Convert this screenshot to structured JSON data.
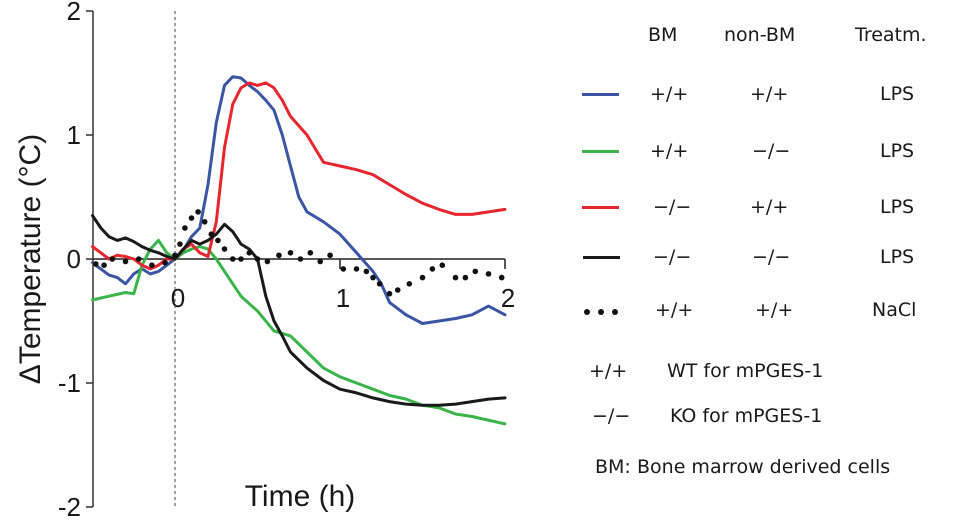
{
  "chart_data": {
    "type": "line",
    "title": "",
    "xlabel": "Time (h)",
    "ylabel": "ΔTemperature (°C)",
    "xlim": [
      -0.5,
      2.0
    ],
    "ylim": [
      -2,
      2
    ],
    "xticks": [
      0,
      1,
      2
    ],
    "xtick_labels": [
      "0",
      "1",
      "2"
    ],
    "yticks": [
      2,
      1,
      0,
      -1,
      -2
    ],
    "ytick_labels": [
      "2",
      "1",
      "0",
      "-1",
      "-2"
    ],
    "reference_line": {
      "x": 0,
      "style": "dashed"
    },
    "grid": false,
    "legend_position": "right",
    "series": [
      {
        "name": "BM +/+, non-BM +/+, LPS",
        "color": "#3a55a4",
        "style": "solid",
        "x": [
          -0.5,
          -0.45,
          -0.4,
          -0.35,
          -0.3,
          -0.25,
          -0.2,
          -0.15,
          -0.1,
          -0.05,
          0,
          0.05,
          0.1,
          0.15,
          0.2,
          0.25,
          0.3,
          0.35,
          0.4,
          0.45,
          0.5,
          0.55,
          0.6,
          0.65,
          0.7,
          0.75,
          0.8,
          0.9,
          1.0,
          1.1,
          1.2,
          1.25,
          1.3,
          1.4,
          1.5,
          1.6,
          1.7,
          1.8,
          1.9,
          2.0
        ],
        "y": [
          -0.03,
          -0.08,
          -0.13,
          -0.15,
          -0.2,
          -0.12,
          -0.08,
          -0.12,
          -0.1,
          -0.05,
          0.0,
          0.07,
          0.18,
          0.25,
          0.6,
          1.1,
          1.4,
          1.47,
          1.46,
          1.4,
          1.35,
          1.28,
          1.2,
          1.0,
          0.75,
          0.5,
          0.38,
          0.3,
          0.2,
          0.05,
          -0.1,
          -0.2,
          -0.35,
          -0.45,
          -0.52,
          -0.5,
          -0.48,
          -0.45,
          -0.38,
          -0.45
        ]
      },
      {
        "name": "BM +/+, non-BM −/−, LPS",
        "color": "#3ab54a",
        "style": "solid",
        "x": [
          -0.5,
          -0.4,
          -0.3,
          -0.25,
          -0.2,
          -0.15,
          -0.1,
          -0.05,
          0,
          0.05,
          0.1,
          0.15,
          0.2,
          0.25,
          0.3,
          0.4,
          0.5,
          0.6,
          0.7,
          0.8,
          0.9,
          1.0,
          1.1,
          1.2,
          1.3,
          1.4,
          1.5,
          1.6,
          1.7,
          1.8,
          1.9,
          2.0
        ],
        "y": [
          -0.33,
          -0.3,
          -0.27,
          -0.28,
          -0.05,
          0.08,
          0.15,
          0.05,
          0.0,
          0.05,
          0.08,
          0.1,
          0.08,
          0.0,
          -0.1,
          -0.3,
          -0.42,
          -0.58,
          -0.62,
          -0.75,
          -0.88,
          -0.95,
          -1.0,
          -1.05,
          -1.1,
          -1.13,
          -1.18,
          -1.2,
          -1.25,
          -1.27,
          -1.3,
          -1.33
        ]
      },
      {
        "name": "BM −/−, non-BM +/+, LPS",
        "color": "#e8262d",
        "style": "solid",
        "x": [
          -0.5,
          -0.45,
          -0.4,
          -0.35,
          -0.3,
          -0.25,
          -0.2,
          -0.15,
          -0.1,
          -0.05,
          0,
          0.05,
          0.1,
          0.15,
          0.2,
          0.25,
          0.3,
          0.35,
          0.4,
          0.45,
          0.5,
          0.55,
          0.6,
          0.65,
          0.7,
          0.8,
          0.9,
          1.0,
          1.1,
          1.2,
          1.3,
          1.4,
          1.5,
          1.6,
          1.7,
          1.8,
          1.9,
          2.0
        ],
        "y": [
          0.1,
          0.05,
          0.0,
          0.03,
          0.02,
          0.0,
          -0.05,
          -0.08,
          -0.05,
          0.0,
          0.0,
          0.08,
          0.12,
          0.05,
          0.02,
          0.3,
          0.9,
          1.25,
          1.38,
          1.42,
          1.4,
          1.42,
          1.38,
          1.28,
          1.15,
          1.0,
          0.78,
          0.75,
          0.72,
          0.68,
          0.6,
          0.52,
          0.45,
          0.4,
          0.36,
          0.36,
          0.38,
          0.4
        ]
      },
      {
        "name": "BM −/−, non-BM −/−, LPS",
        "color": "#1a1a1a",
        "style": "solid",
        "x": [
          -0.5,
          -0.45,
          -0.4,
          -0.35,
          -0.3,
          -0.25,
          -0.2,
          -0.15,
          -0.1,
          -0.05,
          0,
          0.05,
          0.1,
          0.15,
          0.2,
          0.25,
          0.3,
          0.35,
          0.4,
          0.45,
          0.5,
          0.55,
          0.6,
          0.65,
          0.7,
          0.8,
          0.9,
          1.0,
          1.1,
          1.2,
          1.3,
          1.4,
          1.5,
          1.6,
          1.7,
          1.8,
          1.9,
          2.0
        ],
        "y": [
          0.35,
          0.25,
          0.18,
          0.15,
          0.17,
          0.14,
          0.1,
          0.07,
          0.05,
          0.02,
          0.0,
          0.08,
          0.15,
          0.12,
          0.15,
          0.2,
          0.28,
          0.22,
          0.12,
          0.08,
          0.0,
          -0.3,
          -0.5,
          -0.62,
          -0.75,
          -0.88,
          -0.98,
          -1.05,
          -1.08,
          -1.12,
          -1.15,
          -1.17,
          -1.18,
          -1.18,
          -1.17,
          -1.15,
          -1.13,
          -1.12
        ]
      },
      {
        "name": "BM +/+, non-BM +/+, NaCl",
        "color": "#111111",
        "style": "dotted",
        "x": [
          -0.48,
          -0.43,
          -0.38,
          -0.3,
          -0.22,
          -0.14,
          -0.06,
          0.0,
          0.03,
          0.06,
          0.1,
          0.14,
          0.18,
          0.22,
          0.26,
          0.3,
          0.35,
          0.4,
          0.45,
          0.5,
          0.56,
          0.63,
          0.7,
          0.76,
          0.82,
          0.88,
          0.94,
          1.02,
          1.1,
          1.16,
          1.2,
          1.24,
          1.3,
          1.35,
          1.42,
          1.5,
          1.56,
          1.62,
          1.7,
          1.76,
          1.82,
          1.9,
          1.98
        ],
        "y": [
          -0.04,
          -0.05,
          0.0,
          -0.02,
          0.0,
          -0.05,
          -0.03,
          0.03,
          0.12,
          0.25,
          0.33,
          0.38,
          0.3,
          0.2,
          0.15,
          0.08,
          0.0,
          0.0,
          0.05,
          0.0,
          -0.02,
          0.03,
          0.05,
          0.0,
          0.05,
          -0.02,
          0.03,
          -0.08,
          -0.08,
          -0.1,
          -0.15,
          -0.2,
          -0.28,
          -0.25,
          -0.2,
          -0.15,
          -0.08,
          -0.05,
          -0.15,
          -0.15,
          -0.1,
          -0.12,
          -0.15
        ]
      }
    ]
  },
  "legend": {
    "headers": {
      "bm": "BM",
      "non_bm": "non-BM",
      "treatment": "Treatm."
    },
    "rows": [
      {
        "bm": "+/+",
        "non_bm": "+/+",
        "treatment": "LPS"
      },
      {
        "bm": "+/+",
        "non_bm": "−/−",
        "treatment": "LPS"
      },
      {
        "bm": "−/−",
        "non_bm": "+/+",
        "treatment": "LPS"
      },
      {
        "bm": "−/−",
        "non_bm": "−/−",
        "treatment": "LPS"
      },
      {
        "bm": "+/+",
        "non_bm": "+/+",
        "treatment": "NaCl"
      }
    ],
    "key": [
      {
        "symbol": "+/+",
        "text": "WT for mPGES-1"
      },
      {
        "symbol": "−/−",
        "text": "KO for mPGES-1"
      }
    ],
    "note": {
      "abbr": "BM:",
      "text": "Bone marrow derived cells"
    }
  }
}
